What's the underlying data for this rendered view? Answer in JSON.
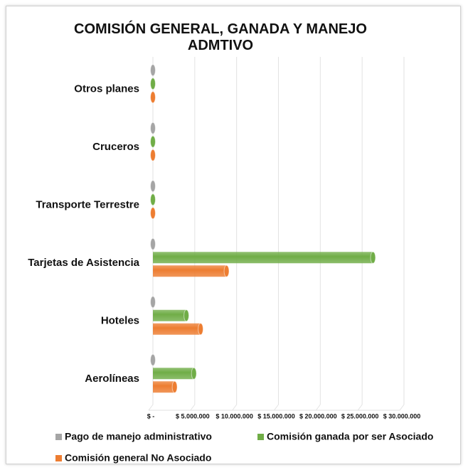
{
  "chart_data": {
    "type": "bar",
    "orientation": "horizontal",
    "title": "COMISIÓN GENERAL, GANADA Y MANEJO ADMTIVO",
    "categories": [
      "Aerolíneas",
      "Hoteles",
      "Tarjetas de Asistencia",
      "Transporte Terrestre",
      "Cruceros",
      "Otros planes"
    ],
    "series": [
      {
        "name": "Pago de manejo administrativo",
        "color": "#a5a5a5",
        "values": [
          0,
          0,
          0,
          0,
          0,
          0
        ]
      },
      {
        "name": "Comisión ganada por ser Asociado",
        "color": "#70ad47",
        "values": [
          4900000,
          4000000,
          26300000,
          0,
          0,
          0
        ]
      },
      {
        "name": "Comisión general No Asociado",
        "color": "#ed7d31",
        "values": [
          2600000,
          5700000,
          8800000,
          0,
          0,
          0
        ]
      }
    ],
    "xlim": [
      0,
      30000000
    ],
    "xticks": [
      {
        "value": 0,
        "label": "$ -"
      },
      {
        "value": 5000000,
        "label": "$ 5.000.000"
      },
      {
        "value": 10000000,
        "label": "$ 10.000.000"
      },
      {
        "value": 15000000,
        "label": "$ 15.000.000"
      },
      {
        "value": 20000000,
        "label": "$ 20.000.000"
      },
      {
        "value": 25000000,
        "label": "$ 25.000.000"
      },
      {
        "value": 30000000,
        "label": "$ 30.000.000"
      }
    ],
    "grid": true,
    "legend": "bottom"
  }
}
